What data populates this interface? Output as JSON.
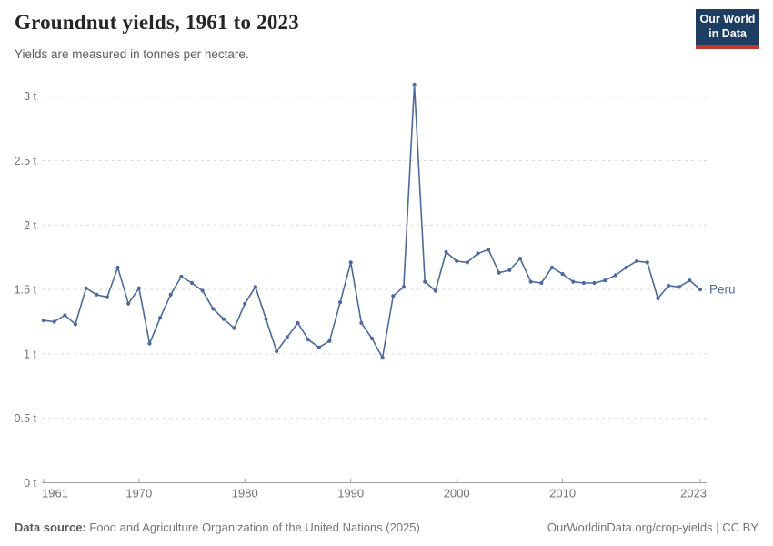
{
  "header": {
    "title": "Groundnut yields, 1961 to 2023",
    "subtitle": "Yields are measured in tonnes per hectare.",
    "logo_line1": "Our World",
    "logo_line2": "in Data"
  },
  "footer": {
    "datasource_label": "Data source:",
    "datasource_text": " Food and Agriculture Organization of the United Nations (2025)",
    "credit": "OurWorldinData.org/crop-yields | CC BY"
  },
  "colors": {
    "series": "#4c6a9c",
    "grid": "#d9d9d9",
    "axis": "#a0a0a0",
    "tick_label": "#737373",
    "logo_bg": "#1d3d63",
    "logo_red": "#c0392b"
  },
  "chart_data": {
    "type": "line",
    "title": "Groundnut yields, 1961 to 2023",
    "subtitle": "Yields are measured in tonnes per hectare.",
    "xlabel": "",
    "ylabel": "tonnes per hectare",
    "grid": true,
    "legend_position": "end-of-line",
    "xlim": [
      1961,
      2023
    ],
    "ylim": [
      0,
      3
    ],
    "x_ticks": [
      1961,
      1970,
      1980,
      1990,
      2000,
      2010,
      2023
    ],
    "y_ticks": [
      0,
      0.5,
      1,
      1.5,
      2,
      2.5,
      3
    ],
    "y_tick_suffix": " t",
    "x": [
      1961,
      1962,
      1963,
      1964,
      1965,
      1966,
      1967,
      1968,
      1969,
      1970,
      1971,
      1972,
      1973,
      1974,
      1975,
      1976,
      1977,
      1978,
      1979,
      1980,
      1981,
      1982,
      1983,
      1984,
      1985,
      1986,
      1987,
      1988,
      1989,
      1990,
      1991,
      1992,
      1993,
      1994,
      1995,
      1996,
      1997,
      1998,
      1999,
      2000,
      2001,
      2002,
      2003,
      2004,
      2005,
      2006,
      2007,
      2008,
      2009,
      2010,
      2011,
      2012,
      2013,
      2014,
      2015,
      2016,
      2017,
      2018,
      2019,
      2020,
      2021,
      2022,
      2023
    ],
    "series": [
      {
        "name": "Peru",
        "values": [
          1.26,
          1.25,
          1.3,
          1.23,
          1.51,
          1.46,
          1.44,
          1.67,
          1.39,
          1.51,
          1.08,
          1.28,
          1.46,
          1.6,
          1.55,
          1.49,
          1.35,
          1.27,
          1.2,
          1.39,
          1.52,
          1.27,
          1.02,
          1.13,
          1.24,
          1.11,
          1.05,
          1.1,
          1.4,
          1.71,
          1.24,
          1.12,
          0.97,
          1.45,
          1.52,
          3.09,
          1.56,
          1.49,
          1.79,
          1.72,
          1.71,
          1.78,
          1.81,
          1.63,
          1.65,
          1.74,
          1.56,
          1.55,
          1.67,
          1.62,
          1.56,
          1.55,
          1.55,
          1.57,
          1.61,
          1.67,
          1.72,
          1.71,
          1.43,
          1.53,
          1.52,
          1.57,
          1.5
        ]
      }
    ]
  }
}
